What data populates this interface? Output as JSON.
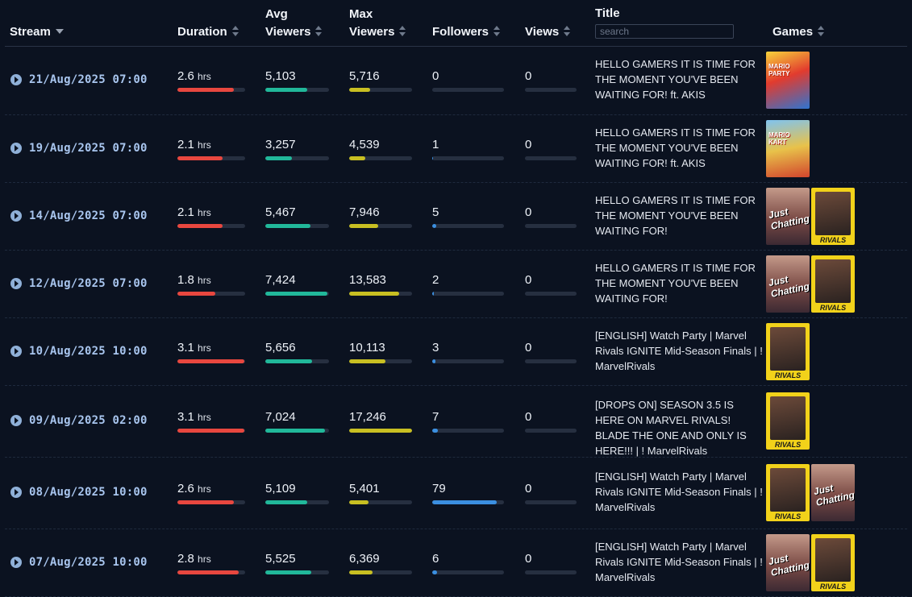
{
  "headers": {
    "stream": "Stream",
    "duration": "Duration",
    "avg_viewers": [
      "Avg",
      "Viewers"
    ],
    "max_viewers": [
      "Max",
      "Viewers"
    ],
    "followers": "Followers",
    "views": "Views",
    "title": "Title",
    "games": "Games",
    "search_placeholder": "search"
  },
  "duration_unit": "hrs",
  "colors": {
    "duration": "#e8473f",
    "avg_viewers": "#21b89a",
    "max_viewers": "#c8bf22",
    "followers": "#3b8fe0"
  },
  "rows": [
    {
      "date": "21/Aug/2025 07:00",
      "duration": "2.6",
      "duration_level": 0.83,
      "avg": "5,103",
      "avg_level": 0.66,
      "max": "5,716",
      "max_level": 0.33,
      "followers": "0",
      "followers_level": 0.0,
      "views": "0",
      "title": "HELLO GAMERS IT IS TIME FOR THE MOMENT YOU'VE BEEN WAITING FOR! ft. AKIS",
      "games": [
        {
          "name": "Super Mario Party Jamboree",
          "icon": "mario-party-cover",
          "label": "MARIO PARTY"
        }
      ]
    },
    {
      "date": "19/Aug/2025 07:00",
      "duration": "2.1",
      "duration_level": 0.67,
      "avg": "3,257",
      "avg_level": 0.42,
      "max": "4,539",
      "max_level": 0.26,
      "followers": "1",
      "followers_level": 0.01,
      "views": "0",
      "title": "HELLO GAMERS IT IS TIME FOR THE MOMENT YOU'VE BEEN WAITING FOR! ft. AKIS",
      "games": [
        {
          "name": "Mario Kart World",
          "icon": "mario-kart-cover",
          "label": "MARIO KART"
        }
      ]
    },
    {
      "date": "14/Aug/2025 07:00",
      "duration": "2.1",
      "duration_level": 0.67,
      "avg": "5,467",
      "avg_level": 0.71,
      "max": "7,946",
      "max_level": 0.46,
      "followers": "5",
      "followers_level": 0.06,
      "views": "0",
      "title": "HELLO GAMERS IT IS TIME FOR THE MOMENT YOU'VE BEEN WAITING FOR!",
      "games": [
        {
          "name": "Just Chatting",
          "icon": "just-chatting-cover",
          "label": "Just Chatting"
        },
        {
          "name": "Marvel Rivals",
          "icon": "marvel-rivals-cover",
          "label": "RIVALS"
        }
      ]
    },
    {
      "date": "12/Aug/2025 07:00",
      "duration": "1.8",
      "duration_level": 0.56,
      "avg": "7,424",
      "avg_level": 0.98,
      "max": "13,583",
      "max_level": 0.79,
      "followers": "2",
      "followers_level": 0.02,
      "views": "0",
      "title": "HELLO GAMERS IT IS TIME FOR THE MOMENT YOU'VE BEEN WAITING FOR!",
      "games": [
        {
          "name": "Just Chatting",
          "icon": "just-chatting-cover",
          "label": "Just Chatting"
        },
        {
          "name": "Marvel Rivals",
          "icon": "marvel-rivals-cover",
          "label": "RIVALS"
        }
      ]
    },
    {
      "date": "10/Aug/2025 10:00",
      "duration": "3.1",
      "duration_level": 0.99,
      "avg": "5,656",
      "avg_level": 0.74,
      "max": "10,113",
      "max_level": 0.58,
      "followers": "3",
      "followers_level": 0.04,
      "views": "0",
      "title": "[ENGLISH] Watch Party | Marvel Rivals IGNITE Mid-Season Finals | ! MarvelRivals",
      "games": [
        {
          "name": "Marvel Rivals",
          "icon": "marvel-rivals-cover",
          "label": "RIVALS"
        }
      ]
    },
    {
      "date": "09/Aug/2025 02:00",
      "duration": "3.1",
      "duration_level": 0.99,
      "avg": "7,024",
      "avg_level": 0.94,
      "max": "17,246",
      "max_level": 1.0,
      "followers": "7",
      "followers_level": 0.08,
      "views": "0",
      "title": "[DROPS ON] SEASON 3.5 IS HERE ON MARVEL RIVALS! BLADE THE ONE AND ONLY IS HERE!!! | ! MarvelRivals",
      "games": [
        {
          "name": "Marvel Rivals",
          "icon": "marvel-rivals-cover",
          "label": "RIVALS"
        }
      ]
    },
    {
      "date": "08/Aug/2025 10:00",
      "duration": "2.6",
      "duration_level": 0.83,
      "avg": "5,109",
      "avg_level": 0.66,
      "max": "5,401",
      "max_level": 0.31,
      "followers": "79",
      "followers_level": 0.9,
      "views": "0",
      "title": "[ENGLISH] Watch Party | Marvel Rivals IGNITE Mid-Season Finals | ! MarvelRivals",
      "games": [
        {
          "name": "Marvel Rivals",
          "icon": "marvel-rivals-cover",
          "label": "RIVALS"
        },
        {
          "name": "Just Chatting",
          "icon": "just-chatting-cover",
          "label": "Just Chatting"
        }
      ]
    },
    {
      "date": "07/Aug/2025 10:00",
      "duration": "2.8",
      "duration_level": 0.9,
      "avg": "5,525",
      "avg_level": 0.72,
      "max": "6,369",
      "max_level": 0.37,
      "followers": "6",
      "followers_level": 0.07,
      "views": "0",
      "title": "[ENGLISH] Watch Party | Marvel Rivals IGNITE Mid-Season Finals | ! MarvelRivals",
      "games": [
        {
          "name": "Just Chatting",
          "icon": "just-chatting-cover",
          "label": "Just Chatting"
        },
        {
          "name": "Marvel Rivals",
          "icon": "marvel-rivals-cover",
          "label": "RIVALS"
        }
      ]
    }
  ]
}
